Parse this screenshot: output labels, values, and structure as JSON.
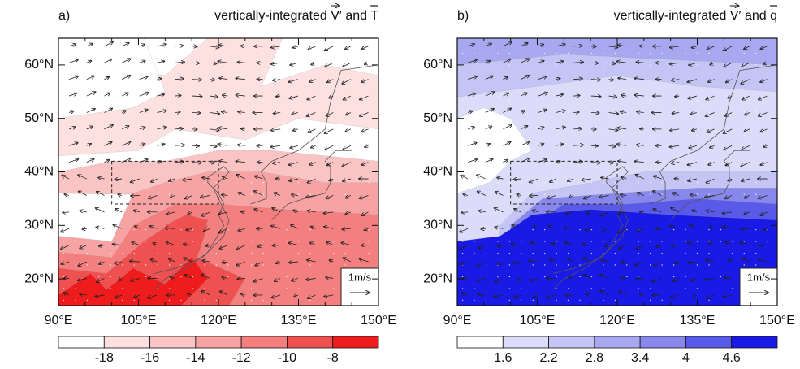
{
  "panels": [
    {
      "label": "a)",
      "title": [
        "vertically-integrated ",
        "V",
        "′ and ",
        "T"
      ],
      "colorbar": {
        "levels": [
          -18,
          -16,
          -14,
          -12,
          -10,
          -8
        ],
        "colors": [
          "#ffffff",
          "#fde0e0",
          "#fbc4c4",
          "#f8a3a3",
          "#f37f7f",
          "#ef5050",
          "#ee1c1c"
        ]
      },
      "reference_vector": "1m/s"
    },
    {
      "label": "b)",
      "title": [
        "vertically-integrated ",
        "V",
        "′ and ",
        "q"
      ],
      "colorbar": {
        "levels": [
          1.6,
          2.2,
          2.8,
          3.4,
          4,
          4.6
        ],
        "colors": [
          "#ffffff",
          "#dcdcfa",
          "#c4c4f5",
          "#a8a8f0",
          "#8888ec",
          "#5a5ae8",
          "#1a1ae6"
        ]
      },
      "reference_vector": "1m/s"
    }
  ],
  "xlim": [
    90,
    150
  ],
  "ylim": [
    15,
    65
  ],
  "xticks": [
    {
      "value": 90,
      "label": "90°E"
    },
    {
      "value": 105,
      "label": "105°E"
    },
    {
      "value": 120,
      "label": "120°E"
    },
    {
      "value": 135,
      "label": "135°E"
    },
    {
      "value": 150,
      "label": "150°E"
    }
  ],
  "yticks": [
    {
      "value": 20,
      "label": "20°N"
    },
    {
      "value": 30,
      "label": "30°N"
    },
    {
      "value": 40,
      "label": "40°N"
    },
    {
      "value": 50,
      "label": "50°N"
    },
    {
      "value": 60,
      "label": "60°N"
    }
  ]
}
